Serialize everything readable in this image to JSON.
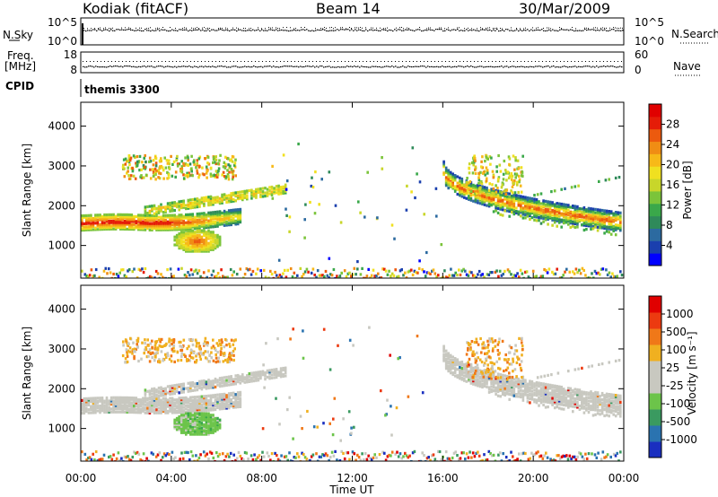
{
  "header": {
    "station": "Kodiak (fitACF)",
    "beam": "Beam 14",
    "date": "30/Mar/2009",
    "cpid_label": "CPID",
    "cpid_value": "themis 3300"
  },
  "noise_panel": {
    "left_label": "N.Sky",
    "right_label": "N.Search",
    "left_ticks": [
      "10^5",
      "10^0"
    ],
    "right_ticks": [
      "10^5",
      "10^0"
    ]
  },
  "freq_panel": {
    "left_label_1": "Freq.",
    "left_label_2": "[MHz]",
    "right_label": "Nave",
    "left_ticks": [
      "18",
      "8"
    ],
    "right_ticks": [
      "60",
      "0"
    ]
  },
  "chart_data": [
    {
      "type": "heatmap",
      "name": "power",
      "ylabel": "Slant Range [km]",
      "ylim": [
        180,
        4600
      ],
      "yticks": [
        "4000",
        "3000",
        "2000",
        "1000"
      ],
      "colorbar_label": "Power [dB]",
      "colorbar_ticks": [
        "28",
        "24",
        "20",
        "16",
        "12",
        "8",
        "4"
      ],
      "colorbar_colors": [
        "#0000ff",
        "#1a3fae",
        "#2c6aa0",
        "#2f8a5a",
        "#3aa84a",
        "#7bc43a",
        "#c8d62a",
        "#f0e020",
        "#f7b918",
        "#f08d14",
        "#ec5a0e",
        "#e51c08",
        "#e00000"
      ]
    },
    {
      "type": "heatmap",
      "name": "velocity",
      "ylabel": "Slant Range [km]",
      "ylim": [
        180,
        4600
      ],
      "yticks": [
        "4000",
        "3000",
        "2000",
        "1000"
      ],
      "colorbar_label": "Velocity [m s⁻¹]",
      "colorbar_ticks": [
        "1000",
        "500",
        "100",
        "25",
        "-25",
        "-100",
        "-500",
        "-1000"
      ],
      "colorbar_colors": [
        "#1a2fc0",
        "#2a73b0",
        "#3a9a60",
        "#6cc44a",
        "#c8c8c0",
        "#c8c8c0",
        "#f0b020",
        "#f07818",
        "#ec3a10",
        "#e00000"
      ]
    }
  ],
  "xaxis": {
    "label": "Time UT",
    "ticks": [
      "00:00",
      "04:00",
      "08:00",
      "12:00",
      "16:00",
      "20:00",
      "00:00"
    ]
  }
}
